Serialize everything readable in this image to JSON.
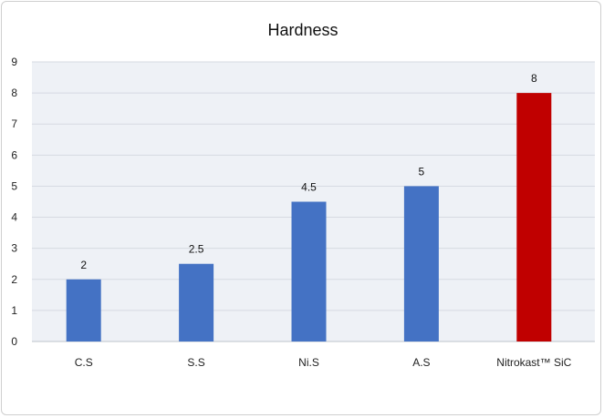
{
  "chart_data": {
    "type": "bar",
    "title": "Hardness",
    "xlabel": "",
    "ylabel": "",
    "categories": [
      "C.S",
      "S.S",
      "Ni.S",
      "A.S",
      "Nitrokast™ SiC"
    ],
    "values": [
      2,
      2.5,
      4.5,
      5,
      8
    ],
    "data_labels": [
      "2",
      "2.5",
      "4.5",
      "5",
      "8"
    ],
    "ylim": [
      0,
      9
    ],
    "yticks": [
      "0",
      "1",
      "2",
      "3",
      "4",
      "5",
      "6",
      "7",
      "8",
      "9"
    ],
    "grid": true,
    "legend": "none",
    "colors": {
      "default_bar": "#4472C4",
      "highlight_bar": "#C00000",
      "plot_background": "#EEF1F6",
      "gridline": "#D6DAE2"
    },
    "highlight_index": 4
  }
}
